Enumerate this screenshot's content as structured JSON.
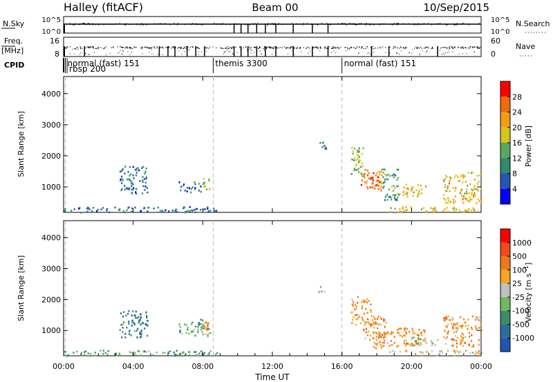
{
  "header": {
    "station": "Halley (fitACF)",
    "beam": "Beam 00",
    "date": "10/Sep/2015"
  },
  "status_panel": {
    "nsky_label": "N.Sky",
    "nsky_ticks": [
      "10^5",
      "10^0"
    ],
    "nsearch_label": "N.Search",
    "nsearch_ticks": [
      "10^5",
      "10^0"
    ],
    "freq_label": "Freq.",
    "freq_unit": "[MHz]",
    "freq_ticks": [
      "16",
      "8"
    ],
    "nave_label": "Nave",
    "nave_ticks": [
      "60",
      "0"
    ],
    "cpid_label": "CPID"
  },
  "cpid_segments": [
    {
      "start_h": 0.1,
      "label": "normal (fast) 151"
    },
    {
      "start_h": 0.2,
      "label": "rbsp 200"
    },
    {
      "start_h": 8.6,
      "label": "themis 3300"
    },
    {
      "start_h": 16.0,
      "label": "normal (fast) 151"
    }
  ],
  "chart_data": [
    {
      "type": "heatmap",
      "title": "Power",
      "xlabel": "",
      "ylabel": "Slant Range [km]",
      "x_unit": "hours UT",
      "xlim": [
        0,
        24
      ],
      "ylim": [
        180,
        4550
      ],
      "yticks": [
        1000,
        2000,
        3000,
        4000
      ],
      "colorbar": {
        "label": "Power [dB]",
        "ticks": [
          "28",
          "24",
          "20",
          "16",
          "12",
          "8",
          "4"
        ],
        "range": [
          0,
          32
        ],
        "colors": [
          "#0000ff",
          "#2656b0",
          "#2f8a6e",
          "#5aa860",
          "#d4c61b",
          "#f39c12",
          "#ef6a0f",
          "#ff0000"
        ]
      },
      "scatter_regions": [
        {
          "x": [
            3.2,
            4.8
          ],
          "y": [
            800,
            1700
          ],
          "level": 2
        },
        {
          "x": [
            6.6,
            7.9
          ],
          "y": [
            850,
            1200
          ],
          "level": 2
        },
        {
          "x": [
            7.9,
            8.4
          ],
          "y": [
            900,
            1300
          ],
          "level": 4
        },
        {
          "x": [
            0.0,
            8.8
          ],
          "y": [
            200,
            380
          ],
          "level": 2
        },
        {
          "x": [
            14.6,
            15.1
          ],
          "y": [
            2200,
            2450
          ],
          "level": 2
        },
        {
          "x": [
            16.5,
            17.2
          ],
          "y": [
            1400,
            2300
          ],
          "level": 4
        },
        {
          "x": [
            17.0,
            18.3
          ],
          "y": [
            900,
            1600
          ],
          "level": 6
        },
        {
          "x": [
            17.6,
            18.2
          ],
          "y": [
            1000,
            1350
          ],
          "level": 7
        },
        {
          "x": [
            18.3,
            19.2
          ],
          "y": [
            600,
            1600
          ],
          "level": 3
        },
        {
          "x": [
            19.0,
            20.8
          ],
          "y": [
            700,
            1100
          ],
          "level": 5
        },
        {
          "x": [
            21.8,
            24.0
          ],
          "y": [
            500,
            1500
          ],
          "level": 5
        },
        {
          "x": [
            18.6,
            24.0
          ],
          "y": [
            200,
            380
          ],
          "level": 5
        }
      ]
    },
    {
      "type": "heatmap",
      "title": "Velocity",
      "xlabel": "Time UT",
      "ylabel": "Slant Range [km]",
      "x_unit": "hours UT",
      "xlim": [
        0,
        24
      ],
      "ylim": [
        180,
        4550
      ],
      "yticks": [
        1000,
        2000,
        3000,
        4000
      ],
      "xticks": [
        "00:00",
        "04:00",
        "08:00",
        "12:00",
        "16:00",
        "20:00",
        "00:00"
      ],
      "colorbar": {
        "label": "Velocity [m s^-1]",
        "ticks": [
          "1000",
          "500",
          "100",
          "25",
          "-25",
          "-100",
          "-500",
          "-1000"
        ],
        "colors": [
          "#2156b0",
          "#2e6d99",
          "#3a8c6a",
          "#6fba5d",
          "#c0c0c0",
          "#f5a623",
          "#f07818",
          "#ef4a1a",
          "#ff0000"
        ]
      },
      "scatter_regions": [
        {
          "x": [
            3.2,
            4.8
          ],
          "y": [
            800,
            1700
          ],
          "level": 2
        },
        {
          "x": [
            6.6,
            8.4
          ],
          "y": [
            850,
            1400
          ],
          "level": 3
        },
        {
          "x": [
            7.9,
            8.4
          ],
          "y": [
            900,
            1300
          ],
          "level": 6
        },
        {
          "x": [
            0.0,
            8.8
          ],
          "y": [
            200,
            380
          ],
          "level": 3
        },
        {
          "x": [
            14.6,
            15.1
          ],
          "y": [
            2200,
            2450
          ],
          "level": 4
        },
        {
          "x": [
            16.5,
            17.8
          ],
          "y": [
            1200,
            2150
          ],
          "level": 6
        },
        {
          "x": [
            17.2,
            18.5
          ],
          "y": [
            700,
            1500
          ],
          "level": 6
        },
        {
          "x": [
            17.8,
            19.0
          ],
          "y": [
            450,
            1000
          ],
          "level": 6
        },
        {
          "x": [
            19.0,
            20.8
          ],
          "y": [
            500,
            1100
          ],
          "level": 6
        },
        {
          "x": [
            21.8,
            24.0
          ],
          "y": [
            500,
            1500
          ],
          "level": 6
        },
        {
          "x": [
            18.6,
            24.0
          ],
          "y": [
            200,
            380
          ],
          "level": 5
        },
        {
          "x": [
            19.5,
            21.5
          ],
          "y": [
            500,
            800
          ],
          "level": 4
        }
      ]
    }
  ],
  "colors": {
    "axis": "#000000",
    "dashed_marker": "#bbbbbb"
  }
}
